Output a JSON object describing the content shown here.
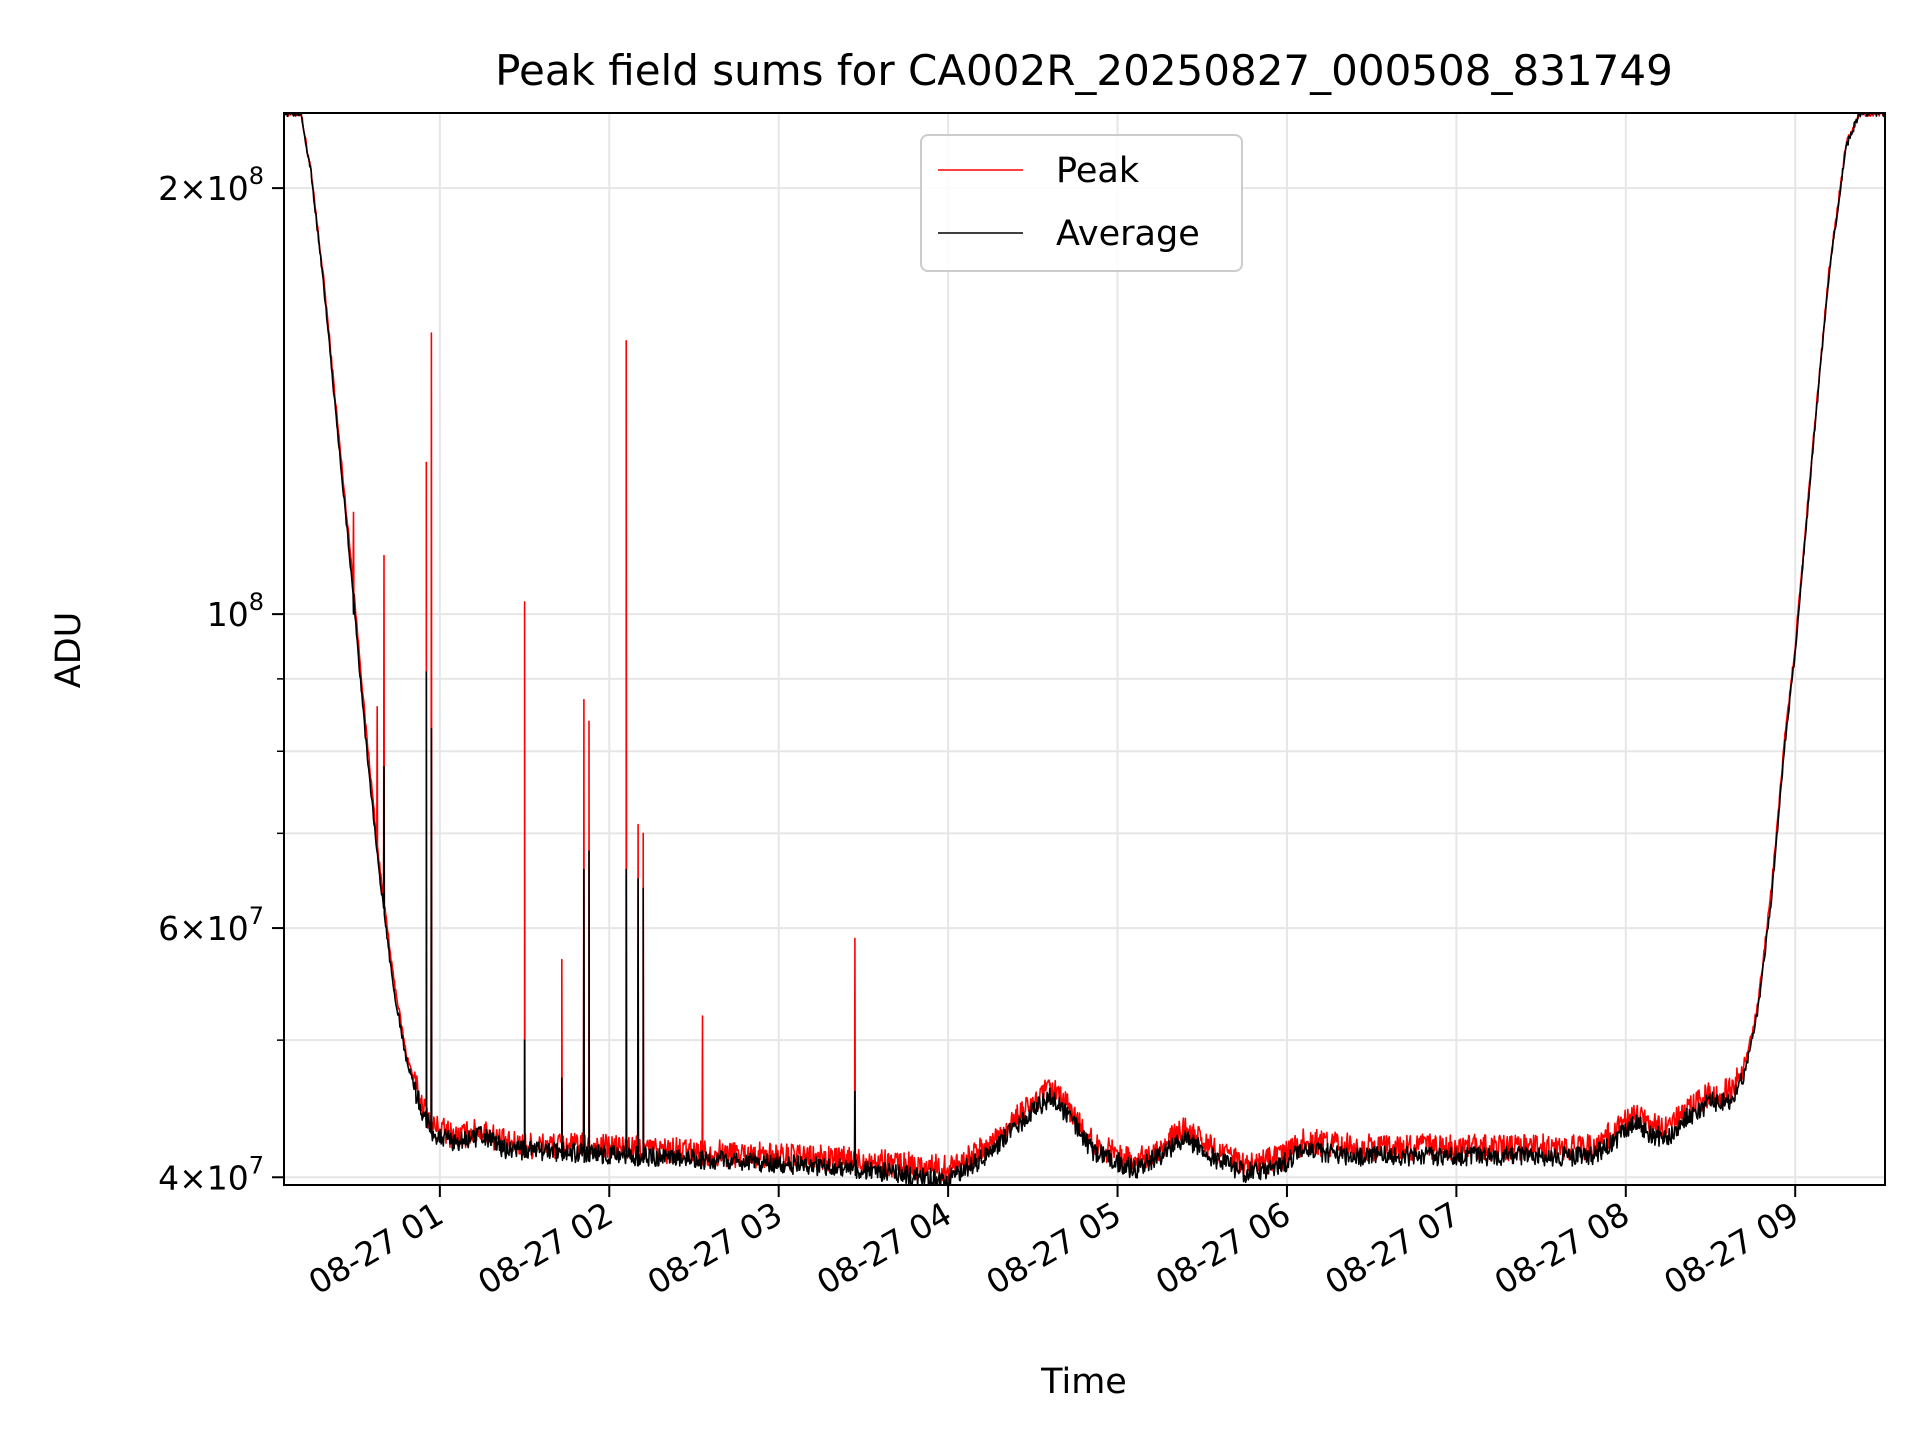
{
  "chart_data": {
    "type": "line",
    "title": "Peak field sums for CA002R_20250827_000508_831749",
    "xlabel": "Time",
    "ylabel": "ADU",
    "y_scale": "log",
    "x_range_hours": [
      0.08,
      9.53
    ],
    "ylim": [
      39500000,
      226000000
    ],
    "x_ticks": [
      {
        "hour": 1,
        "label": "08-27 01"
      },
      {
        "hour": 2,
        "label": "08-27 02"
      },
      {
        "hour": 3,
        "label": "08-27 03"
      },
      {
        "hour": 4,
        "label": "08-27 04"
      },
      {
        "hour": 5,
        "label": "08-27 05"
      },
      {
        "hour": 6,
        "label": "08-27 06"
      },
      {
        "hour": 7,
        "label": "08-27 07"
      },
      {
        "hour": 8,
        "label": "08-27 08"
      },
      {
        "hour": 9,
        "label": "08-27 09"
      }
    ],
    "y_major_ticks": [
      {
        "value": 40000000,
        "mantissa": "4",
        "exp": "7"
      },
      {
        "value": 60000000,
        "mantissa": "6",
        "exp": "7"
      },
      {
        "value": 100000000,
        "mantissa": "",
        "exp": "8"
      },
      {
        "value": 200000000,
        "mantissa": "2",
        "exp": "8"
      }
    ],
    "y_minor_grid": [
      50000000,
      70000000,
      80000000,
      90000000
    ],
    "grid": true,
    "legend_position": "top-center",
    "series": [
      {
        "name": "Peak",
        "color": "#ff0000",
        "baseline": [
          [
            0.08,
            226000000
          ],
          [
            0.18,
            226000000
          ],
          [
            0.24,
            205000000
          ],
          [
            0.32,
            170000000
          ],
          [
            0.4,
            135000000
          ],
          [
            0.48,
            108000000
          ],
          [
            0.56,
            84000000
          ],
          [
            0.64,
            67000000
          ],
          [
            0.72,
            56000000
          ],
          [
            0.8,
            49000000
          ],
          [
            0.88,
            45500000
          ],
          [
            0.96,
            43500000
          ],
          [
            1.1,
            42700000
          ],
          [
            1.25,
            43200000
          ],
          [
            1.4,
            42200000
          ],
          [
            1.7,
            42100000
          ],
          [
            2.0,
            42000000
          ],
          [
            2.5,
            41700000
          ],
          [
            3.0,
            41400000
          ],
          [
            3.5,
            41100000
          ],
          [
            3.85,
            40700000
          ],
          [
            4.0,
            40600000
          ],
          [
            4.2,
            41800000
          ],
          [
            4.4,
            44000000
          ],
          [
            4.6,
            46200000
          ],
          [
            4.7,
            45000000
          ],
          [
            4.85,
            42300000
          ],
          [
            5.1,
            41000000
          ],
          [
            5.25,
            42000000
          ],
          [
            5.4,
            43200000
          ],
          [
            5.55,
            42000000
          ],
          [
            5.75,
            40800000
          ],
          [
            5.95,
            41200000
          ],
          [
            6.1,
            42400000
          ],
          [
            6.4,
            42000000
          ],
          [
            7.0,
            42000000
          ],
          [
            7.8,
            42000000
          ],
          [
            7.95,
            43200000
          ],
          [
            8.05,
            44400000
          ],
          [
            8.15,
            43500000
          ],
          [
            8.25,
            43200000
          ],
          [
            8.35,
            44500000
          ],
          [
            8.5,
            45800000
          ],
          [
            8.62,
            46000000
          ],
          [
            8.7,
            47800000
          ],
          [
            8.78,
            53000000
          ],
          [
            8.86,
            64000000
          ],
          [
            8.94,
            82000000
          ],
          [
            9.0,
            95000000
          ],
          [
            9.1,
            130000000
          ],
          [
            9.2,
            175000000
          ],
          [
            9.3,
            215000000
          ],
          [
            9.38,
            226000000
          ],
          [
            9.53,
            226000000
          ]
        ],
        "spikes": [
          [
            0.49,
            118000000
          ],
          [
            0.63,
            86000000
          ],
          [
            0.67,
            110000000
          ],
          [
            0.92,
            128000000
          ],
          [
            0.95,
            158000000
          ],
          [
            1.5,
            102000000
          ],
          [
            1.72,
            57000000
          ],
          [
            1.85,
            87000000
          ],
          [
            1.88,
            84000000
          ],
          [
            2.1,
            156000000
          ],
          [
            2.17,
            71000000
          ],
          [
            2.2,
            70000000
          ],
          [
            2.55,
            52000000
          ],
          [
            3.45,
            59000000
          ]
        ]
      },
      {
        "name": "Average",
        "color": "#000000",
        "baseline": [
          [
            0.08,
            226000000
          ],
          [
            0.18,
            226000000
          ],
          [
            0.24,
            205000000
          ],
          [
            0.32,
            168000000
          ],
          [
            0.4,
            133000000
          ],
          [
            0.48,
            106000000
          ],
          [
            0.56,
            82000000
          ],
          [
            0.64,
            66000000
          ],
          [
            0.72,
            55000000
          ],
          [
            0.8,
            48500000
          ],
          [
            0.88,
            45000000
          ],
          [
            0.96,
            43000000
          ],
          [
            1.1,
            42300000
          ],
          [
            1.25,
            42800000
          ],
          [
            1.4,
            41800000
          ],
          [
            1.7,
            41700000
          ],
          [
            2.0,
            41500000
          ],
          [
            2.5,
            41200000
          ],
          [
            3.0,
            40900000
          ],
          [
            3.5,
            40500000
          ],
          [
            3.85,
            40000000
          ],
          [
            4.0,
            39900000
          ],
          [
            4.2,
            41200000
          ],
          [
            4.4,
            43400000
          ],
          [
            4.6,
            45600000
          ],
          [
            4.7,
            44400000
          ],
          [
            4.85,
            41800000
          ],
          [
            5.1,
            40500000
          ],
          [
            5.25,
            41400000
          ],
          [
            5.4,
            42600000
          ],
          [
            5.55,
            41400000
          ],
          [
            5.75,
            40300000
          ],
          [
            5.95,
            40700000
          ],
          [
            6.1,
            41800000
          ],
          [
            6.4,
            41400000
          ],
          [
            7.0,
            41400000
          ],
          [
            7.8,
            41400000
          ],
          [
            7.95,
            42600000
          ],
          [
            8.05,
            43800000
          ],
          [
            8.15,
            42900000
          ],
          [
            8.25,
            42600000
          ],
          [
            8.35,
            44000000
          ],
          [
            8.5,
            45200000
          ],
          [
            8.62,
            45400000
          ],
          [
            8.7,
            47200000
          ],
          [
            8.78,
            52500000
          ],
          [
            8.86,
            63000000
          ],
          [
            8.94,
            81000000
          ],
          [
            9.0,
            94000000
          ],
          [
            9.1,
            129000000
          ],
          [
            9.2,
            174000000
          ],
          [
            9.3,
            214000000
          ],
          [
            9.38,
            226000000
          ],
          [
            9.53,
            226000000
          ]
        ],
        "spikes": [
          [
            0.49,
            100000000
          ],
          [
            0.67,
            78000000
          ],
          [
            0.92,
            91000000
          ],
          [
            0.95,
            83000000
          ],
          [
            1.5,
            50000000
          ],
          [
            1.72,
            47000000
          ],
          [
            1.85,
            66000000
          ],
          [
            1.88,
            68000000
          ],
          [
            2.1,
            66000000
          ],
          [
            2.17,
            65000000
          ],
          [
            2.2,
            64000000
          ],
          [
            3.45,
            46000000
          ]
        ]
      }
    ]
  }
}
